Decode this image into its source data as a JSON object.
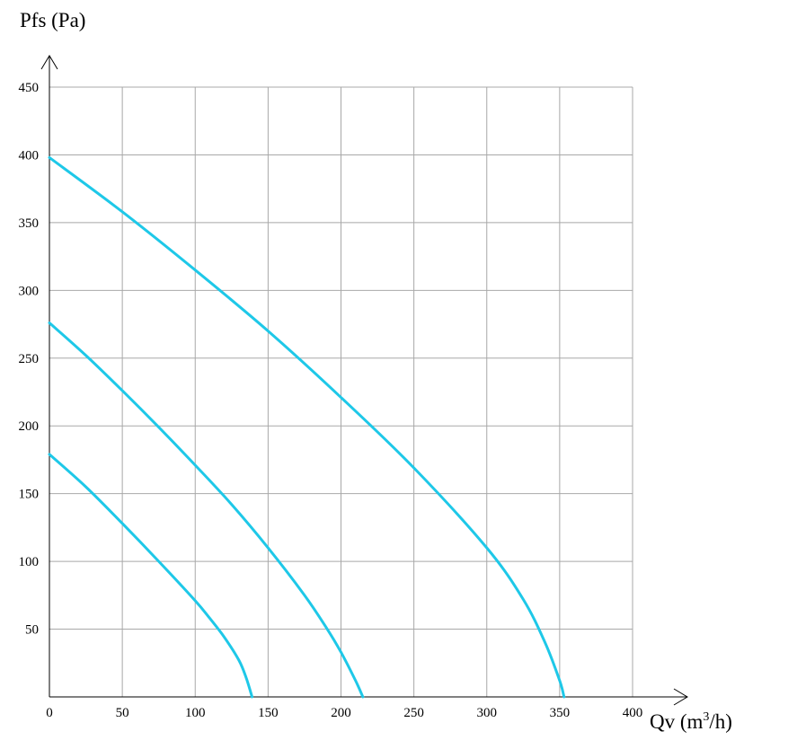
{
  "chart_data": {
    "type": "line",
    "ylabel": "Pfs (Pa)",
    "xlabel_main": "Qv (m",
    "xlabel_sup": "3",
    "xlabel_tail": "/h)",
    "xlim": [
      0,
      400
    ],
    "ylim": [
      0,
      450
    ],
    "x_ticks": [
      0,
      50,
      100,
      150,
      200,
      250,
      300,
      350,
      400
    ],
    "x_tick_labels": [
      "0",
      "50",
      "100",
      "150",
      "200",
      "250",
      "300",
      "350",
      "400"
    ],
    "y_ticks": [
      50,
      100,
      150,
      200,
      250,
      300,
      350,
      400,
      450
    ],
    "y_tick_labels": [
      "50",
      "100",
      "150",
      "200",
      "250",
      "300",
      "350",
      "400",
      "450"
    ],
    "grid": true,
    "line_color": "#1ec8e8",
    "series": [
      {
        "x": [
          0,
          25,
          50,
          75,
          100,
          110,
          120,
          130,
          135,
          139
        ],
        "y": [
          179,
          155,
          128,
          100,
          71,
          58,
          44,
          27,
          14,
          0
        ]
      },
      {
        "x": [
          0,
          25,
          50,
          75,
          100,
          125,
          150,
          175,
          190,
          200,
          210,
          215
        ],
        "y": [
          276,
          252,
          226,
          199,
          171,
          142,
          110,
          75,
          51,
          33,
          12,
          0
        ]
      },
      {
        "x": [
          0,
          50,
          100,
          150,
          200,
          250,
          300,
          325,
          340,
          350,
          353
        ],
        "y": [
          398,
          358,
          315,
          270,
          221,
          169,
          110,
          72,
          40,
          12,
          0
        ]
      }
    ]
  }
}
